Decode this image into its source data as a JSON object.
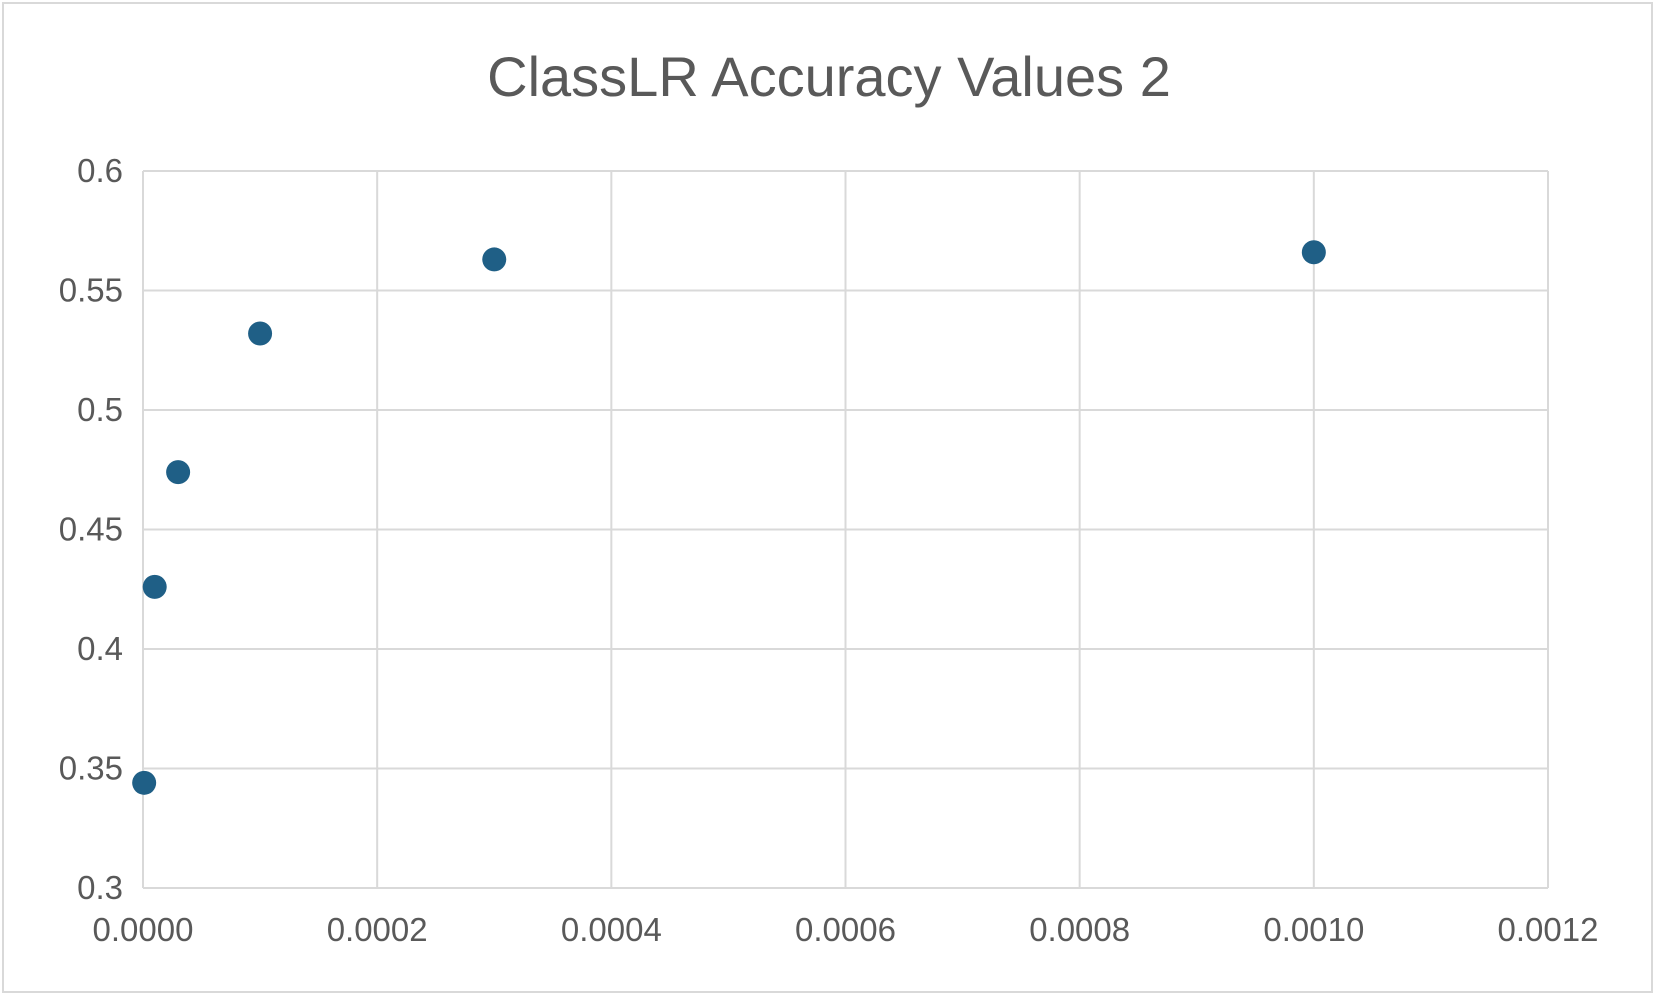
{
  "chart_data": {
    "type": "scatter",
    "title": "ClassLR Accuracy Values 2",
    "xlabel": "",
    "ylabel": "",
    "xlim": [
      0,
      0.0012
    ],
    "ylim": [
      0.3,
      0.6
    ],
    "grid": true,
    "legend": "none",
    "x_ticks": [
      "0.0000",
      "0.0002",
      "0.0004",
      "0.0006",
      "0.0008",
      "0.0010",
      "0.0012"
    ],
    "y_ticks": [
      "0.3",
      "0.35",
      "0.4",
      "0.45",
      "0.5",
      "0.55",
      "0.6"
    ],
    "series": [
      {
        "color": "#1f5f86",
        "points": [
          {
            "x": 1e-06,
            "y": 0.344
          },
          {
            "x": 1e-05,
            "y": 0.426
          },
          {
            "x": 3e-05,
            "y": 0.474
          },
          {
            "x": 0.0001,
            "y": 0.532
          },
          {
            "x": 0.0003,
            "y": 0.563
          },
          {
            "x": 0.001,
            "y": 0.566
          }
        ]
      }
    ],
    "colors": {
      "grid": "#d9d9d9",
      "text": "#595959",
      "marker": "#1f5f86"
    }
  }
}
